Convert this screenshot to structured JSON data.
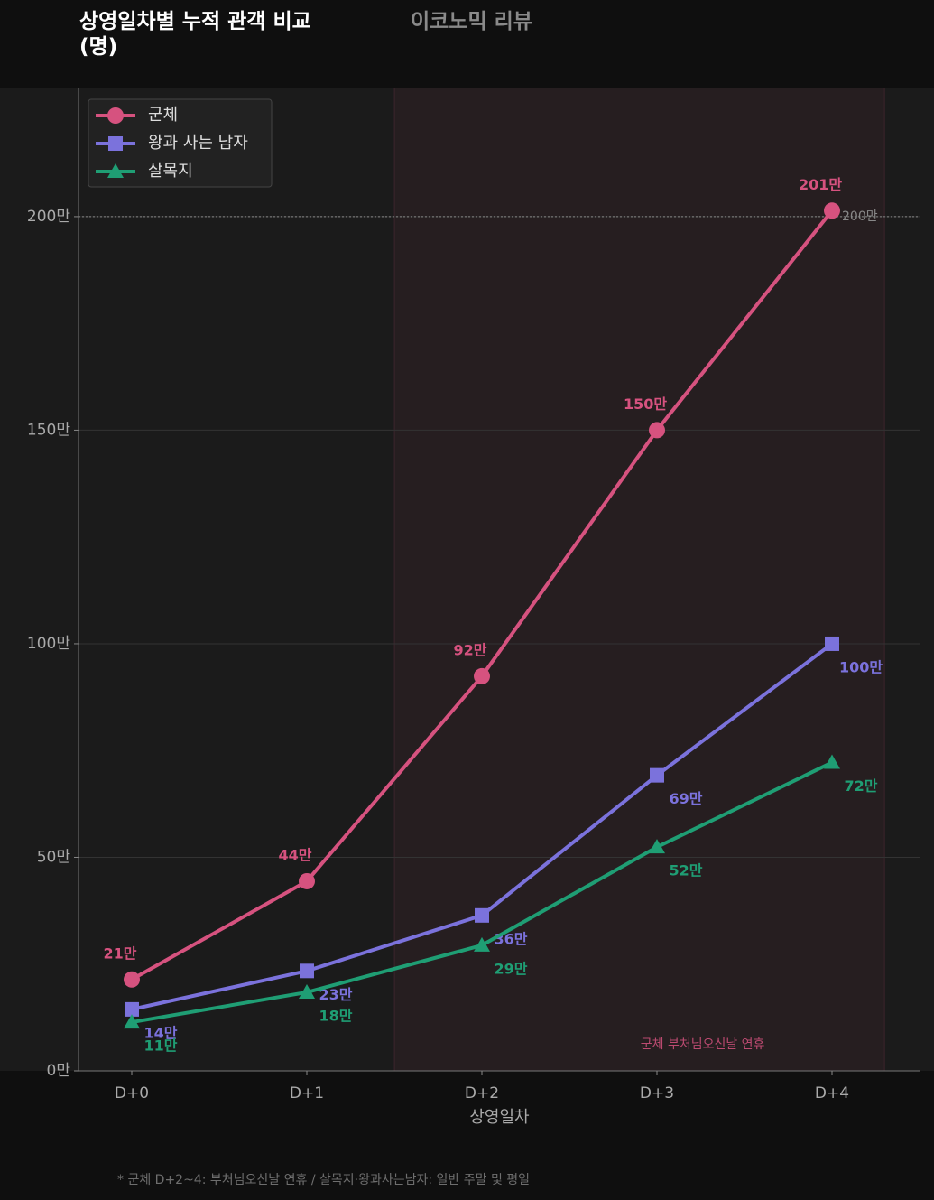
{
  "chart_data": {
    "type": "line",
    "title": "상영일차별 누적 관객 비교\n(명)",
    "brand": "이코노믹 리뷰",
    "xlabel": "상영일차",
    "footnote": "* 군체 D+2~4: 부처님오신날 연휴 / 살목지·왕과사는남자: 일반 주말 및 평일",
    "categories": [
      "D+0",
      "D+1",
      "D+2",
      "D+3",
      "D+4"
    ],
    "series": [
      {
        "name": "군체",
        "color": "#d6527f",
        "marker": "circle",
        "values": [
          21.4,
          44.4,
          92.4,
          150,
          201.4
        ],
        "value_labels": [
          "21만",
          "44만",
          "92만",
          "150만",
          "201만"
        ]
      },
      {
        "name": "왕과 사는 남자",
        "color": "#7b72dc",
        "marker": "square",
        "values": [
          14.4,
          23.4,
          36.4,
          69.2,
          100
        ],
        "value_labels": [
          "14만",
          "23만",
          "36만",
          "69만",
          "100만"
        ]
      },
      {
        "name": "살목지",
        "color": "#1f9e74",
        "marker": "triangle",
        "values": [
          11.4,
          18.4,
          29.4,
          52.4,
          72.2
        ],
        "value_labels": [
          "11만",
          "18만",
          "29만",
          "52만",
          "72만"
        ]
      }
    ],
    "ylim": [
      0,
      230
    ],
    "yticks": [
      {
        "value": 0,
        "label": "0만"
      },
      {
        "value": 50,
        "label": "50만"
      },
      {
        "value": 100,
        "label": "100만"
      },
      {
        "value": 150,
        "label": "150만"
      },
      {
        "value": 200,
        "label": "200만"
      }
    ],
    "grid": true,
    "legend": "upper left",
    "reference_line": {
      "value": 200,
      "label": "200만"
    },
    "highlight": {
      "from": 1.5,
      "to": 4.3,
      "label": "군체 부처님오신날 연휴",
      "color": "#d6527f"
    }
  }
}
